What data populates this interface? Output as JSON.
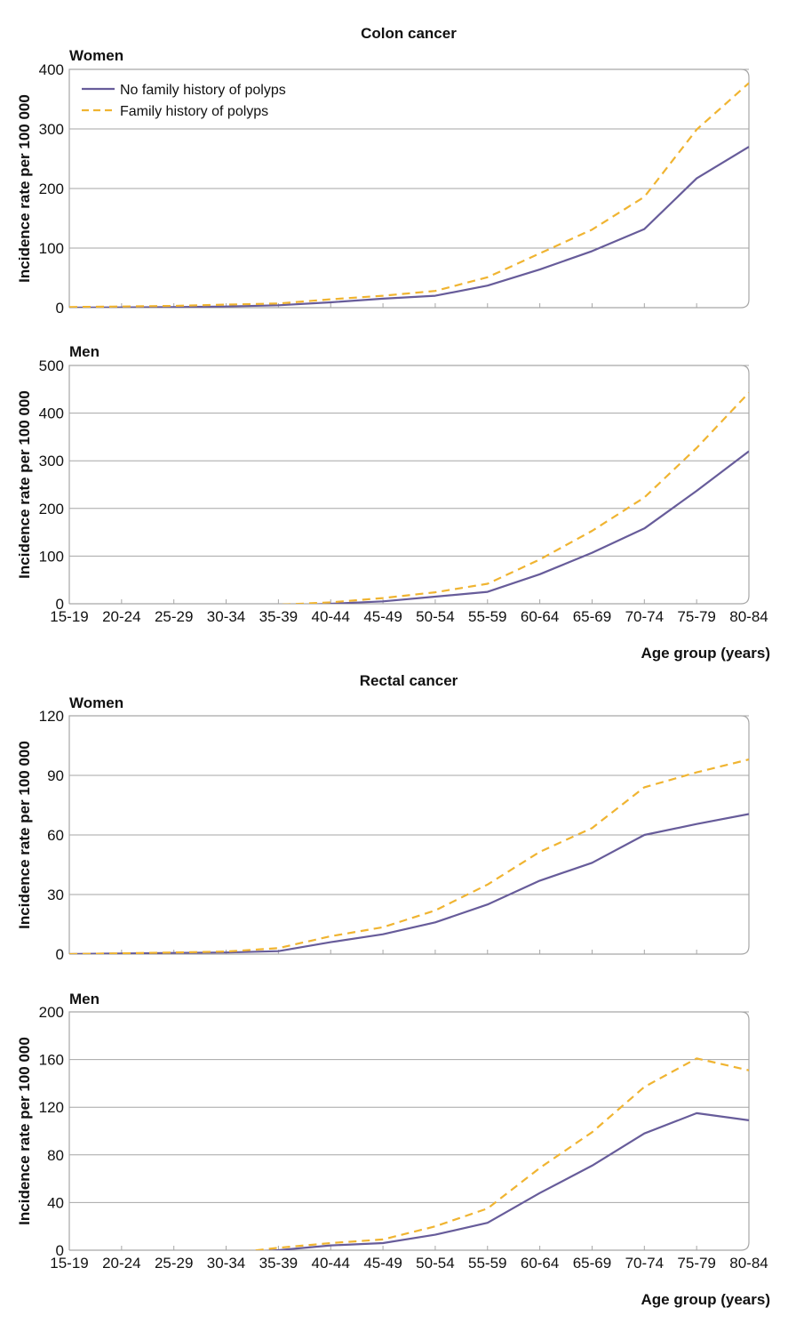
{
  "colors": {
    "no_family_history": "#675c9a",
    "family_history": "#f0b431",
    "gridline": "#a6a6a6",
    "frame": "#a6a6a6"
  },
  "sections": [
    {
      "title": "Colon cancer"
    },
    {
      "title": "Rectal cancer"
    }
  ],
  "chart_data": [
    {
      "type": "line",
      "section": "Colon cancer",
      "panel": "Women",
      "ylabel": "Incidence rate per 100 000",
      "xlabel": "",
      "ylim": [
        0,
        400
      ],
      "yticks": [
        "0",
        "100",
        "200",
        "300",
        "400"
      ],
      "grid": true,
      "legend": "top-left",
      "categories": [
        "15-19",
        "20-24",
        "25-29",
        "30-34",
        "35-39",
        "40-44",
        "45-49",
        "50-54",
        "55-59",
        "60-64",
        "65-69",
        "70-74",
        "75-79",
        "80-84"
      ],
      "show_xticks": false,
      "series": [
        {
          "name": "No family history of polyps",
          "style": "solid",
          "values": [
            0,
            0.5,
            1,
            2,
            4,
            9,
            15,
            20,
            37,
            64,
            95,
            132,
            217,
            270
          ]
        },
        {
          "name": "Family history of polyps",
          "style": "dashed",
          "values": [
            1,
            2,
            3,
            5,
            7,
            14,
            20,
            28,
            51,
            91,
            131,
            186,
            299,
            377
          ]
        }
      ]
    },
    {
      "type": "line",
      "section": "Colon cancer",
      "panel": "Men",
      "ylabel": "Incidence rate per 100 000",
      "xlabel": "Age group (years)",
      "ylim": [
        0,
        500
      ],
      "yticks": [
        "0",
        "100",
        "200",
        "300",
        "400",
        "500"
      ],
      "grid": true,
      "legend": "none",
      "categories": [
        "15-19",
        "20-24",
        "25-29",
        "30-34",
        "35-39",
        "40-44",
        "45-49",
        "50-54",
        "55-59",
        "60-64",
        "65-69",
        "70-74",
        "75-79",
        "80-84"
      ],
      "show_xticks": true,
      "series": [
        {
          "name": "No family history of polyps",
          "style": "solid",
          "values": [
            -10,
            -9,
            -8,
            -5,
            -5,
            0,
            5,
            15,
            25,
            62,
            107,
            158,
            237,
            320
          ]
        },
        {
          "name": "Family history of polyps",
          "style": "dashed",
          "values": [
            -9,
            -8,
            -5,
            -3,
            -2,
            3,
            12,
            24,
            42,
            93,
            153,
            223,
            327,
            443
          ]
        }
      ]
    },
    {
      "type": "line",
      "section": "Rectal cancer",
      "panel": "Women",
      "ylabel": "Incidence rate per 100 000",
      "xlabel": "",
      "ylim": [
        0,
        120
      ],
      "yticks": [
        "0",
        "30",
        "60",
        "90",
        "120"
      ],
      "grid": true,
      "legend": "none",
      "categories": [
        "15-19",
        "20-24",
        "25-29",
        "30-34",
        "35-39",
        "40-44",
        "45-49",
        "50-54",
        "55-59",
        "60-64",
        "65-69",
        "70-74",
        "75-79",
        "80-84"
      ],
      "show_xticks": false,
      "series": [
        {
          "name": "No family history of polyps",
          "style": "solid",
          "values": [
            0,
            0.3,
            0.6,
            0.8,
            1.5,
            6,
            10,
            16,
            25,
            37,
            46,
            60,
            65.5,
            70.5
          ]
        },
        {
          "name": "Family history of polyps",
          "style": "dashed",
          "values": [
            0,
            0.4,
            0.8,
            1.3,
            3,
            9,
            13.5,
            22,
            35,
            51.5,
            63.5,
            84,
            91.5,
            98
          ]
        }
      ]
    },
    {
      "type": "line",
      "section": "Rectal cancer",
      "panel": "Men",
      "ylabel": "Incidence rate per 100 000",
      "xlabel": "Age group (years)",
      "ylim": [
        0,
        200
      ],
      "yticks": [
        "0",
        "40",
        "80",
        "120",
        "160",
        "200"
      ],
      "grid": true,
      "legend": "none",
      "categories": [
        "15-19",
        "20-24",
        "25-29",
        "30-34",
        "35-39",
        "40-44",
        "45-49",
        "50-54",
        "55-59",
        "60-64",
        "65-69",
        "70-74",
        "75-79",
        "80-84"
      ],
      "show_xticks": true,
      "series": [
        {
          "name": "No family history of polyps",
          "style": "solid",
          "values": [
            -4,
            -3,
            -2,
            -3,
            0,
            4,
            6,
            13,
            23,
            48,
            71,
            98,
            115,
            109
          ]
        },
        {
          "name": "Family history of polyps",
          "style": "dashed",
          "values": [
            -4,
            -3,
            -2,
            -3,
            2,
            6,
            9,
            20,
            35,
            69,
            99,
            137,
            161,
            151
          ]
        }
      ]
    }
  ]
}
